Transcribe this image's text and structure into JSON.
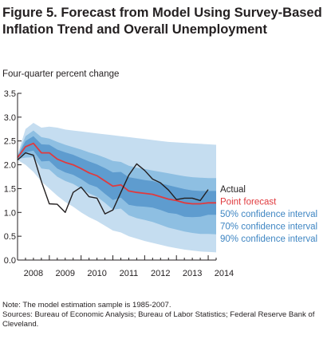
{
  "title": "Figure 5. Forecast from Model Using Survey-Based Inflation Trend and Overall Unemployment",
  "notes": {
    "note": "Note: The model estimation sample is 1985-2007.",
    "sources": "Sources: Bureau of Economic Analysis; Bureau of Labor Statistics; Federal Reserve Bank of Cleveland."
  },
  "chart_data": {
    "type": "line",
    "ylabel": "Four-quarter percent change",
    "ylim": [
      0,
      3.5
    ],
    "xlim": [
      2008,
      2014.25
    ],
    "y_ticks": [
      "0.0",
      "0.5",
      "1.0",
      "1.5",
      "2.0",
      "2.5",
      "3.0",
      "3.5"
    ],
    "x_ticks": [
      "2008",
      "2009",
      "2010",
      "2011",
      "2012",
      "2013",
      "2014"
    ],
    "grid": false,
    "legend": "right",
    "x": [
      2008.0,
      2008.25,
      2008.5,
      2008.75,
      2009.0,
      2009.25,
      2009.5,
      2009.75,
      2010.0,
      2010.25,
      2010.5,
      2010.75,
      2011.0,
      2011.25,
      2011.5,
      2011.75,
      2012.0,
      2012.25,
      2012.5,
      2012.75,
      2013.0,
      2013.25,
      2013.5,
      2013.75,
      2014.0,
      2014.25
    ],
    "series": [
      {
        "name": "Actual",
        "color": "#231f20",
        "values": [
          2.1,
          2.25,
          2.2,
          1.65,
          1.18,
          1.17,
          1.0,
          1.42,
          1.53,
          1.33,
          1.3,
          0.97,
          1.05,
          1.42,
          1.78,
          2.02,
          1.88,
          1.7,
          1.62,
          1.47,
          1.27,
          1.3,
          1.3,
          1.25,
          1.48,
          null
        ]
      },
      {
        "name": "Point forecast",
        "color": "#e03a3e",
        "values": [
          2.15,
          2.38,
          2.45,
          2.25,
          2.25,
          2.12,
          2.05,
          2.0,
          1.92,
          1.83,
          1.77,
          1.66,
          1.55,
          1.58,
          1.45,
          1.42,
          1.4,
          1.38,
          1.33,
          1.28,
          1.25,
          1.2,
          1.18,
          1.18,
          1.2,
          1.2
        ]
      }
    ],
    "bands": [
      {
        "name": "90% confidence interval",
        "color": "#c5ddf0",
        "upper": [
          2.2,
          2.75,
          2.88,
          2.78,
          2.8,
          2.78,
          2.74,
          2.72,
          2.7,
          2.68,
          2.66,
          2.64,
          2.62,
          2.6,
          2.58,
          2.56,
          2.54,
          2.52,
          2.5,
          2.48,
          2.47,
          2.46,
          2.45,
          2.44,
          2.43,
          2.42
        ],
        "lower": [
          2.1,
          2.0,
          1.85,
          1.65,
          1.5,
          1.35,
          1.22,
          1.12,
          1.0,
          0.9,
          0.82,
          0.72,
          0.62,
          0.58,
          0.5,
          0.45,
          0.4,
          0.36,
          0.32,
          0.28,
          0.25,
          0.22,
          0.2,
          0.18,
          0.17,
          0.16
        ]
      },
      {
        "name": "70% confidence interval",
        "color": "#8ebfe2",
        "upper": [
          2.18,
          2.6,
          2.72,
          2.58,
          2.55,
          2.48,
          2.42,
          2.37,
          2.32,
          2.26,
          2.21,
          2.15,
          2.08,
          2.06,
          1.98,
          1.94,
          1.91,
          1.88,
          1.85,
          1.82,
          1.79,
          1.76,
          1.74,
          1.73,
          1.72,
          1.72
        ],
        "lower": [
          2.12,
          2.15,
          2.16,
          1.92,
          1.9,
          1.75,
          1.66,
          1.6,
          1.5,
          1.4,
          1.33,
          1.2,
          1.06,
          1.08,
          0.94,
          0.88,
          0.84,
          0.8,
          0.74,
          0.68,
          0.64,
          0.6,
          0.57,
          0.55,
          0.55,
          0.54
        ]
      },
      {
        "name": "50% confidence interval",
        "color": "#5e9ccf",
        "upper": [
          2.17,
          2.5,
          2.6,
          2.43,
          2.42,
          2.32,
          2.26,
          2.21,
          2.14,
          2.07,
          2.01,
          1.93,
          1.84,
          1.85,
          1.74,
          1.71,
          1.68,
          1.66,
          1.61,
          1.57,
          1.53,
          1.49,
          1.46,
          1.45,
          1.45,
          1.45
        ],
        "lower": [
          2.13,
          2.26,
          2.3,
          2.07,
          2.08,
          1.92,
          1.84,
          1.79,
          1.7,
          1.59,
          1.53,
          1.39,
          1.26,
          1.31,
          1.16,
          1.13,
          1.12,
          1.1,
          1.05,
          0.99,
          0.97,
          0.91,
          0.9,
          0.91,
          0.95,
          0.95
        ]
      }
    ]
  }
}
